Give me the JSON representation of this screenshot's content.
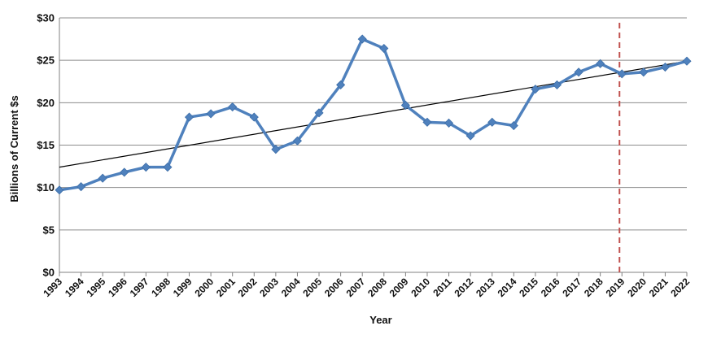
{
  "chart_data": {
    "type": "line",
    "title": "",
    "xlabel": "Year",
    "ylabel": "Billions of Current $s",
    "categories": [
      "1993",
      "1994",
      "1995",
      "1996",
      "1997",
      "1998",
      "1999",
      "2000",
      "2001",
      "2002",
      "2003",
      "2004",
      "2005",
      "2006",
      "2007",
      "2008",
      "2009",
      "2010",
      "2011",
      "2012",
      "2013",
      "2014",
      "2015",
      "2016",
      "2017",
      "2018",
      "2019",
      "2020",
      "2021",
      "2022"
    ],
    "series": [
      {
        "values": [
          9.7,
          10.1,
          11.1,
          11.8,
          12.4,
          12.4,
          18.3,
          18.7,
          19.5,
          18.3,
          14.5,
          15.5,
          18.8,
          22.1,
          27.5,
          26.4,
          19.7,
          17.7,
          17.6,
          16.1,
          17.7,
          17.3,
          21.6,
          22.1,
          23.6,
          24.6,
          23.4,
          23.6,
          24.2,
          24.9
        ],
        "color": "#4f81bd",
        "marker": "diamond"
      }
    ],
    "trendline": {
      "start": 12.4,
      "end": 24.9,
      "color": "#000000"
    },
    "vertical_marker": {
      "at": "2019",
      "color": "#c0504d",
      "style": "dashed"
    },
    "ylim": [
      0,
      30
    ],
    "yticks": [
      0,
      5,
      10,
      15,
      20,
      25,
      30
    ],
    "ytick_labels": [
      "$0",
      "$5",
      "$10",
      "$15",
      "$20",
      "$25",
      "$30"
    ],
    "grid": true,
    "legend": "none"
  }
}
